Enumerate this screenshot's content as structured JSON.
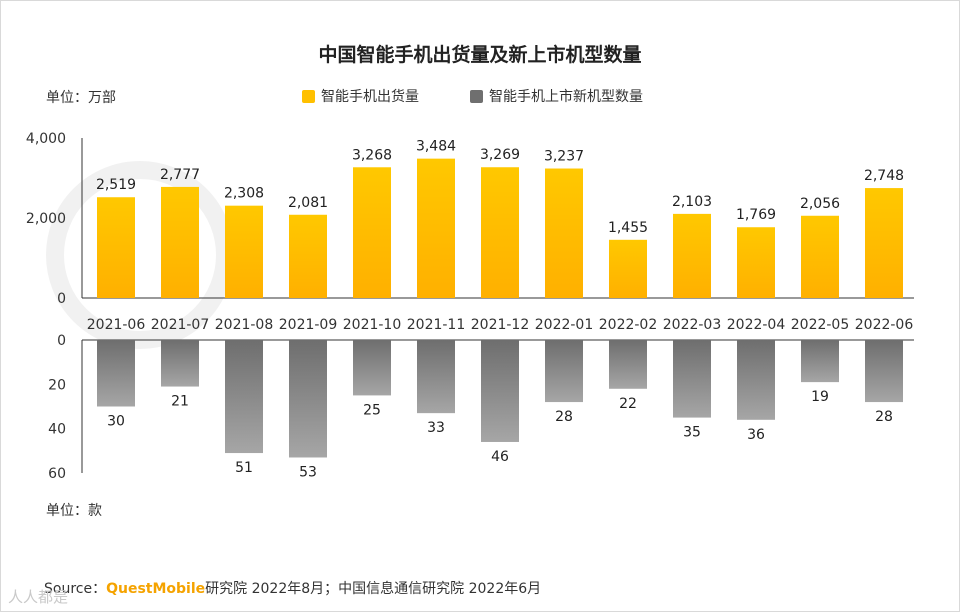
{
  "title": "中国智能手机出货量及新上市机型数量",
  "unit_top": "单位：万部",
  "unit_bottom": "单位：款",
  "source": {
    "prefix": "Source：",
    "brand": "QuestMobile",
    "rest": "研究院 2022年8月；中国信息通信研究院 2022年6月"
  },
  "watermark": "人人都是",
  "colors": {
    "shipments": "#ffc000",
    "models": "#7f7f7f"
  },
  "chart_data": {
    "type": "bar",
    "title": "中国智能手机出货量及新上市机型数量",
    "categories": [
      "2021-06",
      "2021-07",
      "2021-08",
      "2021-09",
      "2021-10",
      "2021-11",
      "2021-12",
      "2022-01",
      "2022-02",
      "2022-03",
      "2022-04",
      "2022-05",
      "2022-06"
    ],
    "series": [
      {
        "name": "智能手机出货量",
        "unit": "万部",
        "values": [
          2519,
          2777,
          2308,
          2081,
          3268,
          3484,
          3269,
          3237,
          1455,
          2103,
          1769,
          2056,
          2748
        ],
        "labels": [
          "2,519",
          "2,777",
          "2,308",
          "2,081",
          "3,268",
          "3,484",
          "3,269",
          "3,237",
          "1,455",
          "2,103",
          "1,769",
          "2,056",
          "2,748"
        ],
        "ylim": [
          0,
          4000
        ],
        "yticks": [
          "0",
          "2,000",
          "4,000"
        ],
        "ytick_values": [
          0,
          2000,
          4000
        ]
      },
      {
        "name": "智能手机上市新机型数量",
        "unit": "款",
        "values": [
          30,
          21,
          51,
          53,
          25,
          33,
          46,
          28,
          22,
          35,
          36,
          19,
          28
        ],
        "labels": [
          "30",
          "21",
          "51",
          "53",
          "25",
          "33",
          "46",
          "28",
          "22",
          "35",
          "36",
          "19",
          "28"
        ],
        "ylim": [
          0,
          60
        ],
        "yticks": [
          "0",
          "20",
          "40",
          "60"
        ],
        "ytick_values": [
          0,
          20,
          40,
          60
        ],
        "inverted": true
      }
    ],
    "legend": "top"
  }
}
